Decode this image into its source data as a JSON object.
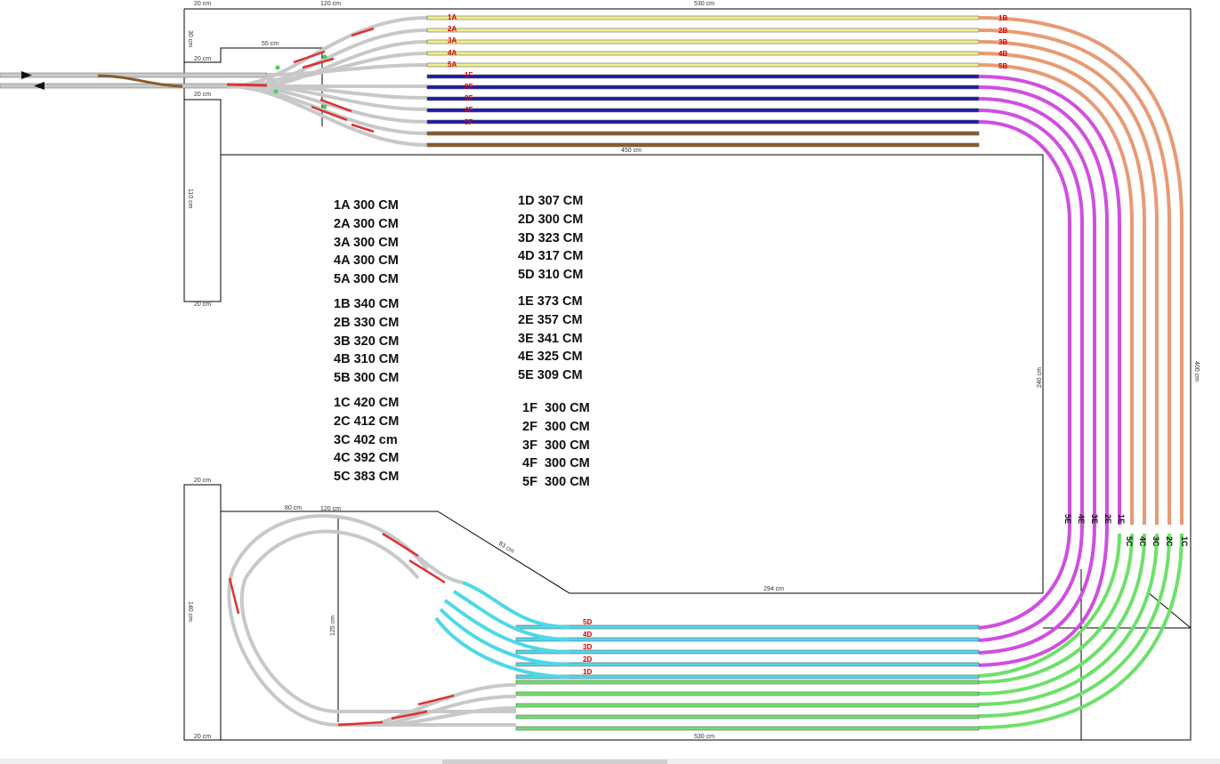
{
  "dimensions": {
    "top_left_w": "20 cm",
    "top_mid_w": "120 cm",
    "top_right_w": "530 cm",
    "left_upper_h": "30 cm",
    "left_upper_w": "20 cm",
    "notch_55": "55 cm",
    "left_mid_w": "20 cm",
    "left_mid_h": "110 cm",
    "left_mid_bottom": "20 cm",
    "inner_top": "450 cm",
    "right_outer": "400 cm",
    "right_inner": "240 cm",
    "left_lower_w": "20 cm",
    "loop_80": "80 cm",
    "loop_120": "120 cm",
    "diag_83": "83 cm",
    "left_lower_h": "140 cm",
    "loop_125": "125 cm",
    "inner_bottom": "294 cm",
    "bottom_w": "530 cm",
    "bottom_left": "20 cm"
  },
  "track_labels": {
    "A": [
      "1A",
      "2A",
      "3A",
      "4A",
      "5A"
    ],
    "B": [
      "1B",
      "2B",
      "3B",
      "4B",
      "5B"
    ],
    "F": [
      "1F",
      "2F",
      "3F",
      "4F",
      "5F"
    ],
    "D": [
      "5D",
      "4D",
      "3D",
      "2D",
      "1D"
    ],
    "E": [
      "5E",
      "4E",
      "3E",
      "2E",
      "1E"
    ],
    "C": [
      "5C",
      "4C",
      "3C",
      "2C",
      "1C"
    ]
  },
  "length_columns": [
    {
      "groups": [
        [
          "1A 300 CM",
          "2A 300 CM",
          "3A 300 CM",
          "4A 300 CM",
          "5A 300 CM"
        ],
        [
          "1B 340 CM",
          "2B 330 CM",
          "3B 320 CM",
          "4B 310 CM",
          "5B 300 CM"
        ],
        [
          "1C 420 CM",
          "2C 412 CM",
          "3C 402 cm",
          "4C 392 CM",
          "5C 383 CM"
        ]
      ]
    },
    {
      "groups": [
        [
          "1D 307 CM",
          "2D 300 CM",
          "3D 323 CM",
          "4D 317 CM",
          "5D 310 CM"
        ],
        [
          "1E 373 CM",
          "2E 357 CM",
          "3E 341 CM",
          "4E 325 CM",
          "5E 309 CM"
        ],
        [
          "1F  300 CM",
          "2F  300 CM",
          "3F  300 CM",
          "4F  300 CM",
          "5F  300 CM"
        ]
      ]
    }
  ],
  "colors": {
    "yellow": "#f0ef8c",
    "navy": "#1a1aa8",
    "brown": "#8b5a2b",
    "salmon": "#e89a74",
    "magenta": "#d04ee0",
    "cyan": "#4ed8e8",
    "green": "#6ee06a",
    "gray": "#c8c8c8",
    "switch_red": "#e03030",
    "label_red": "#e00000"
  }
}
